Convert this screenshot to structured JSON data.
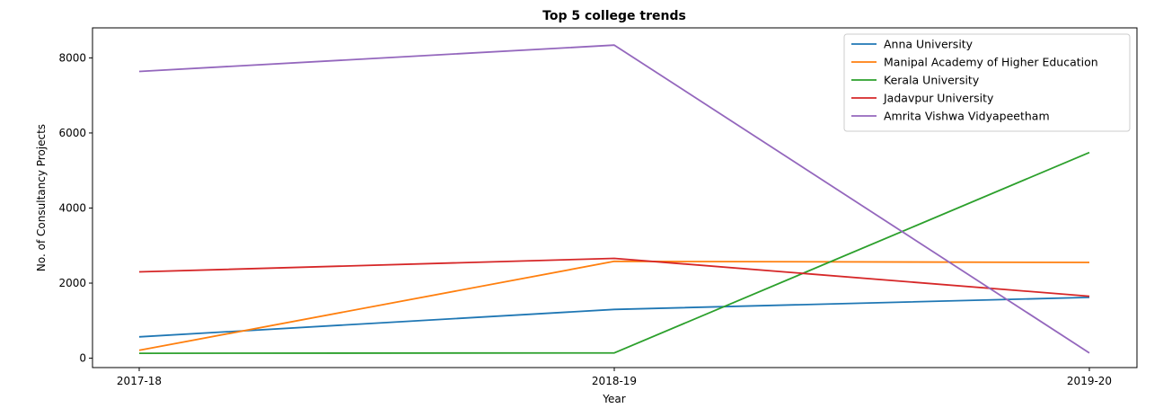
{
  "chart_data": {
    "type": "line",
    "title": "Top 5 college trends",
    "xlabel": "Year",
    "ylabel": "No. of Consultancy Projects",
    "categories": [
      "2017-18",
      "2018-19",
      "2019-20"
    ],
    "ylim": [
      -250,
      8800
    ],
    "yticks": [
      0,
      2000,
      4000,
      6000,
      8000
    ],
    "grid": false,
    "legend_position": "top-right",
    "series": [
      {
        "name": "Anna University",
        "color": "#1f77b4",
        "values": [
          570,
          1300,
          1620
        ]
      },
      {
        "name": "Manipal Academy of Higher Education",
        "color": "#ff7f0e",
        "values": [
          210,
          2580,
          2550
        ]
      },
      {
        "name": "Kerala University",
        "color": "#2ca02c",
        "values": [
          130,
          140,
          5480
        ]
      },
      {
        "name": "Jadavpur University",
        "color": "#d62728",
        "values": [
          2300,
          2660,
          1650
        ]
      },
      {
        "name": "Amrita Vishwa Vidyapeetham",
        "color": "#9467bd",
        "values": [
          7640,
          8340,
          140
        ]
      }
    ]
  }
}
